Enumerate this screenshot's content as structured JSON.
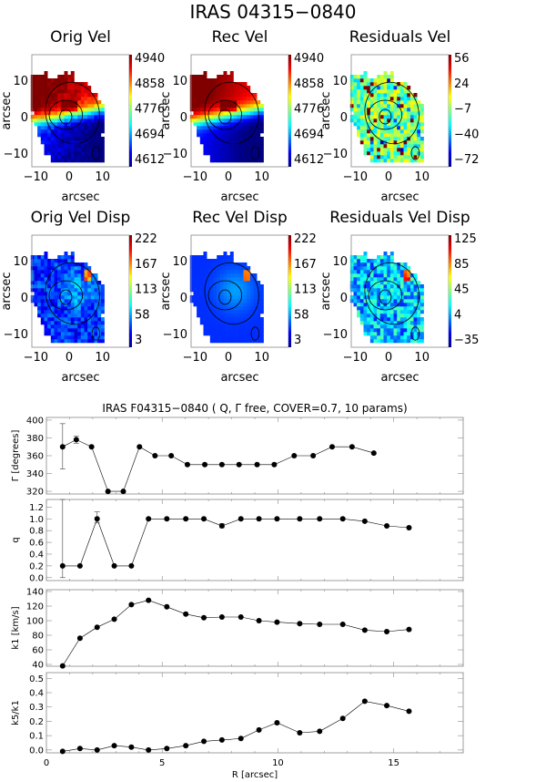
{
  "title": "IRAS 04315−0840",
  "chart_data": [
    {
      "type": "heatmap",
      "title": "Orig Vel",
      "xlabel": "arcsec",
      "ylabel": "arcsec",
      "xticks": [
        "−10",
        "0",
        "10"
      ],
      "yticks": [
        "10",
        "0",
        "−10"
      ],
      "colorbar_ticks": [
        "4940",
        "4858",
        "4776",
        "4694",
        "4612"
      ],
      "crange": [
        4612,
        4940
      ],
      "kind": "vel"
    },
    {
      "type": "heatmap",
      "title": "Rec Vel",
      "xlabel": "arcsec",
      "ylabel": "arcsec",
      "xticks": [
        "−10",
        "0",
        "10"
      ],
      "yticks": [
        "10",
        "0",
        "−10"
      ],
      "colorbar_ticks": [
        "4940",
        "4858",
        "4776",
        "4694",
        "4612"
      ],
      "crange": [
        4612,
        4940
      ],
      "kind": "recvel"
    },
    {
      "type": "heatmap",
      "title": "Residuals Vel",
      "xlabel": "arcsec",
      "ylabel": "arcsec",
      "xticks": [
        "−10",
        "0",
        "10"
      ],
      "yticks": [
        "10",
        "0",
        "−10"
      ],
      "colorbar_ticks": [
        "56",
        "24",
        "−7",
        "−40",
        "−72"
      ],
      "crange": [
        -72,
        56
      ],
      "kind": "res"
    },
    {
      "type": "heatmap",
      "title": "Orig Vel Disp",
      "xlabel": "arcsec",
      "ylabel": "arcsec",
      "xticks": [
        "−10",
        "0",
        "10"
      ],
      "yticks": [
        "10",
        "0",
        "−10"
      ],
      "colorbar_ticks": [
        "222",
        "167",
        "113",
        "58",
        "3"
      ],
      "crange": [
        3,
        222
      ],
      "kind": "disp"
    },
    {
      "type": "heatmap",
      "title": "Rec Vel Disp",
      "xlabel": "arcsec",
      "ylabel": "arcsec",
      "xticks": [
        "−10",
        "0",
        "10"
      ],
      "yticks": [
        "10",
        "0",
        "−10"
      ],
      "colorbar_ticks": [
        "222",
        "167",
        "113",
        "58",
        "3"
      ],
      "crange": [
        3,
        222
      ],
      "kind": "recdisp"
    },
    {
      "type": "heatmap",
      "title": "Residuals Vel Disp",
      "xlabel": "arcsec",
      "ylabel": "arcsec",
      "xticks": [
        "−10",
        "0",
        "10"
      ],
      "yticks": [
        "10",
        "0",
        "−10"
      ],
      "colorbar_ticks": [
        "125",
        "85",
        "45",
        "4",
        "−35"
      ],
      "crange": [
        -35,
        125
      ],
      "kind": "resdisp"
    },
    {
      "type": "line",
      "title": "IRAS F04315−0840 ( Q, Γ  free, COVER=0.7, 10 params)",
      "xlabel": "R [arcsec]",
      "xlim": [
        0,
        18
      ],
      "xticks": [
        "0",
        "5",
        "10",
        "15"
      ],
      "panels": [
        {
          "ylabel": "Γ [degrees]",
          "ylim": [
            317,
            403
          ],
          "yticks": [
            320,
            340,
            360,
            380,
            400
          ],
          "x": [
            0.7,
            1.29,
            1.95,
            2.66,
            3.32,
            4.02,
            4.69,
            5.39,
            6.09,
            6.84,
            7.58,
            8.32,
            9.1,
            9.84,
            10.7,
            11.52,
            12.34,
            13.2,
            14.14
          ],
          "y": [
            370,
            378,
            370,
            320,
            320,
            370,
            360,
            360,
            350,
            350,
            350,
            350,
            350,
            350,
            360,
            360,
            370,
            370,
            363
          ],
          "err": [
            [
              0,
              345,
              396
            ],
            [
              1,
              374,
              382
            ]
          ]
        },
        {
          "ylabel": "q",
          "ylim": [
            -0.05,
            1.33
          ],
          "yticks": [
            0.0,
            0.2,
            0.4,
            0.6,
            0.8,
            1.0,
            1.2
          ],
          "x": [
            0.7,
            1.45,
            2.19,
            2.93,
            3.67,
            4.41,
            5.2,
            6.02,
            6.8,
            7.58,
            8.4,
            9.18,
            9.96,
            10.94,
            11.8,
            12.8,
            13.75,
            14.7,
            15.66
          ],
          "y": [
            0.2,
            0.2,
            1.0,
            0.2,
            0.2,
            1.0,
            1.0,
            1.0,
            1.0,
            0.88,
            1.0,
            1.0,
            1.0,
            1.0,
            1.0,
            1.0,
            0.96,
            0.88,
            0.85
          ],
          "err": [
            [
              0,
              0.0,
              1.33
            ],
            [
              2,
              0.93,
              1.12
            ],
            [
              9,
              0.85,
              0.92
            ]
          ]
        },
        {
          "ylabel": "k1 [km/s]",
          "ylim": [
            37.5,
            142.5
          ],
          "yticks": [
            40,
            60,
            80,
            100,
            120,
            140
          ],
          "x": [
            0.7,
            1.45,
            2.19,
            2.93,
            3.67,
            4.41,
            5.2,
            6.02,
            6.8,
            7.58,
            8.4,
            9.18,
            9.96,
            10.94,
            11.8,
            12.8,
            13.75,
            14.7,
            15.66
          ],
          "y": [
            38,
            76,
            91,
            102,
            122,
            128,
            119,
            109,
            104,
            105,
            105,
            100,
            98,
            96,
            95,
            95,
            87,
            85,
            88
          ],
          "err": []
        },
        {
          "ylabel": "k5/k1",
          "ylim": [
            -0.02,
            0.54
          ],
          "yticks": [
            0.0,
            0.1,
            0.2,
            0.3,
            0.4,
            0.5
          ],
          "x": [
            0.7,
            1.45,
            2.19,
            2.93,
            3.67,
            4.41,
            5.2,
            6.02,
            6.8,
            7.58,
            8.4,
            9.18,
            9.96,
            10.94,
            11.8,
            12.8,
            13.75,
            14.7,
            15.66
          ],
          "y": [
            -0.01,
            0.01,
            0.0,
            0.03,
            0.02,
            0.0,
            0.01,
            0.03,
            0.06,
            0.07,
            0.08,
            0.14,
            0.19,
            0.12,
            0.13,
            0.22,
            0.34,
            0.31,
            0.27
          ],
          "err": []
        }
      ]
    }
  ]
}
